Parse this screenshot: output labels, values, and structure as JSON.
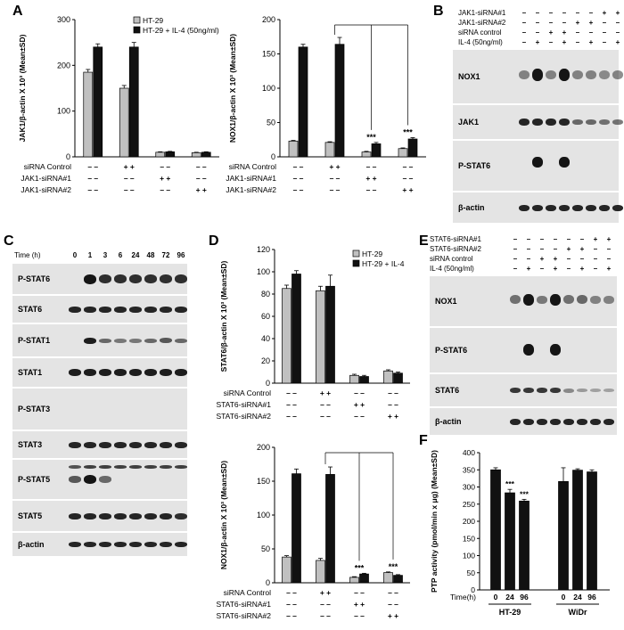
{
  "panels": {
    "A": "A",
    "B": "B",
    "C": "C",
    "D": "D",
    "E": "E",
    "F": "F"
  },
  "chart_data": [
    {
      "id": "A1",
      "type": "bar",
      "ylabel": "JAK1/β-actin X 10³ (Mean±SD)",
      "ylim": [
        0,
        300
      ],
      "yticks": [
        0,
        100,
        200,
        300
      ],
      "legend_position": "top-right",
      "series": [
        {
          "name": "HT-29",
          "values": [
            185,
            150,
            10,
            9
          ],
          "err": [
            6,
            6,
            1,
            1
          ],
          "color": "#c0c0c0"
        },
        {
          "name": "HT-29 + IL-4 (50ng/ml)",
          "values": [
            240,
            240,
            11,
            10
          ],
          "err": [
            7,
            10,
            1,
            1
          ],
          "color": "#111111"
        }
      ],
      "conditions": [
        {
          "name": "siRNA Control",
          "marks": [
            "– –",
            "+ +",
            "– –",
            "– –"
          ]
        },
        {
          "name": "JAK1-siRNA#1",
          "marks": [
            "– –",
            "– –",
            "+ +",
            "– –"
          ]
        },
        {
          "name": "JAK1-siRNA#2",
          "marks": [
            "– –",
            "– –",
            "– –",
            "+ +"
          ]
        }
      ],
      "sig": []
    },
    {
      "id": "A2",
      "type": "bar",
      "ylabel": "NOX1/β-actin X 10³ (Mean±SD)",
      "ylim": [
        0,
        200
      ],
      "yticks": [
        0,
        50,
        100,
        150,
        200
      ],
      "series": [
        {
          "name": "",
          "values": [
            23,
            21,
            7,
            12
          ],
          "err": [
            1,
            1,
            1,
            1
          ],
          "color": "#c0c0c0"
        },
        {
          "name": "",
          "values": [
            160,
            164,
            19,
            26
          ],
          "err": [
            4,
            10,
            2,
            2
          ],
          "color": "#111111"
        }
      ],
      "conditions": [
        {
          "name": "siRNA Control",
          "marks": [
            "– –",
            "+ +",
            "– –",
            "– –"
          ]
        },
        {
          "name": "JAK1-siRNA#1",
          "marks": [
            "– –",
            "– –",
            "+ +",
            "– –"
          ]
        },
        {
          "name": "JAK1-siRNA#2",
          "marks": [
            "– –",
            "– –",
            "– –",
            "+ +"
          ]
        }
      ],
      "sig": [
        {
          "group": 2,
          "label": "***"
        },
        {
          "group": 3,
          "label": "***"
        }
      ],
      "bracket": {
        "from": 1,
        "to": [
          2,
          3
        ]
      }
    },
    {
      "id": "D1",
      "type": "bar",
      "ylabel": "STAT6/β-actin X 10³ (Mean±SD)",
      "ylim": [
        0,
        120
      ],
      "yticks": [
        0,
        20,
        40,
        60,
        80,
        100,
        120
      ],
      "legend_position": "top-right",
      "series": [
        {
          "name": "HT-29",
          "values": [
            85,
            83,
            7,
            11
          ],
          "err": [
            3,
            4,
            1,
            1
          ],
          "color": "#c0c0c0"
        },
        {
          "name": "HT-29 + IL-4",
          "values": [
            98,
            87,
            6,
            9
          ],
          "err": [
            3,
            10,
            1,
            1
          ],
          "color": "#111111"
        }
      ],
      "conditions": [
        {
          "name": "siRNA Control",
          "marks": [
            "– –",
            "+ +",
            "– –",
            "– –"
          ]
        },
        {
          "name": "STAT6-siRNA#1",
          "marks": [
            "– –",
            "– –",
            "+ +",
            "– –"
          ]
        },
        {
          "name": "STAT6-siRNA#2",
          "marks": [
            "– –",
            "– –",
            "– –",
            "+ +"
          ]
        }
      ],
      "sig": []
    },
    {
      "id": "D2",
      "type": "bar",
      "ylabel": "NOX1/β-actin X 10³ (Mean±SD)",
      "ylim": [
        0,
        200
      ],
      "yticks": [
        0,
        50,
        100,
        150,
        200
      ],
      "series": [
        {
          "name": "",
          "values": [
            38,
            33,
            8,
            15
          ],
          "err": [
            2,
            3,
            1,
            1
          ],
          "color": "#c0c0c0"
        },
        {
          "name": "",
          "values": [
            161,
            160,
            13,
            11
          ],
          "err": [
            7,
            11,
            1,
            1
          ],
          "color": "#111111"
        }
      ],
      "conditions": [
        {
          "name": "siRNA Control",
          "marks": [
            "– –",
            "+ +",
            "– –",
            "– –"
          ]
        },
        {
          "name": "STAT6-siRNA#1",
          "marks": [
            "– –",
            "– –",
            "+ +",
            "– –"
          ]
        },
        {
          "name": "STAT6-siRNA#2",
          "marks": [
            "– –",
            "– –",
            "– –",
            "+ +"
          ]
        }
      ],
      "sig": [
        {
          "group": 2,
          "label": "***"
        },
        {
          "group": 3,
          "label": "***"
        }
      ],
      "bracket": {
        "from": 1,
        "to": [
          2,
          3
        ]
      }
    },
    {
      "id": "F1",
      "type": "bar",
      "ylabel": "PTP activity (pmol/min x μg) (Mean±SD)",
      "ylim": [
        0,
        400
      ],
      "yticks": [
        0,
        50,
        100,
        150,
        200,
        250,
        300,
        350,
        400
      ],
      "x_label": "Time(h)",
      "categories": [
        "0",
        "24",
        "96",
        "0",
        "24",
        "96"
      ],
      "groups": [
        "HT-29",
        "WiDr"
      ],
      "values": [
        350,
        283,
        259,
        316,
        349,
        344
      ],
      "err": [
        6,
        10,
        5,
        40,
        4,
        6
      ],
      "color": "#111111",
      "sig": [
        {
          "index": 1,
          "label": "***"
        },
        {
          "index": 2,
          "label": "***"
        }
      ]
    }
  ],
  "blot_B": {
    "conditions": [
      {
        "name": "JAK1-siRNA#1",
        "marks": [
          "–",
          "–",
          "–",
          "–",
          "–",
          "–",
          "+",
          "+"
        ]
      },
      {
        "name": "JAK1-siRNA#2",
        "marks": [
          "–",
          "–",
          "–",
          "–",
          "+",
          "+",
          "–",
          "–"
        ]
      },
      {
        "name": "siRNA control",
        "marks": [
          "–",
          "–",
          "+",
          "+",
          "–",
          "–",
          "–",
          "–"
        ]
      },
      {
        "name": "IL-4 (50ng/ml)",
        "marks": [
          "–",
          "+",
          "–",
          "+",
          "–",
          "+",
          "–",
          "+"
        ]
      }
    ],
    "rows": [
      "NOX1",
      "JAK1",
      "P-STAT6",
      "β-actin"
    ]
  },
  "blot_C": {
    "time_label": "Time (h)",
    "times": [
      "0",
      "1",
      "3",
      "6",
      "24",
      "48",
      "72",
      "96"
    ],
    "rows": [
      "P-STAT6",
      "STAT6",
      "P-STAT1",
      "STAT1",
      "P-STAT3",
      "STAT3",
      "P-STAT5",
      "STAT5",
      "β-actin"
    ]
  },
  "blot_E": {
    "conditions": [
      {
        "name": "STAT6-siRNA#1",
        "marks": [
          "–",
          "–",
          "–",
          "–",
          "–",
          "–",
          "+",
          "+"
        ]
      },
      {
        "name": "STAT6-siRNA#2",
        "marks": [
          "–",
          "–",
          "–",
          "–",
          "+",
          "+",
          "–",
          "–"
        ]
      },
      {
        "name": "siRNA control",
        "marks": [
          "–",
          "–",
          "+",
          "+",
          "–",
          "–",
          "–",
          "–"
        ]
      },
      {
        "name": "IL-4 (50ng/ml)",
        "marks": [
          "–",
          "+",
          "–",
          "+",
          "–",
          "+",
          "–",
          "+"
        ]
      }
    ],
    "rows": [
      "NOX1",
      "P-STAT6",
      "STAT6",
      "β-actin"
    ]
  }
}
